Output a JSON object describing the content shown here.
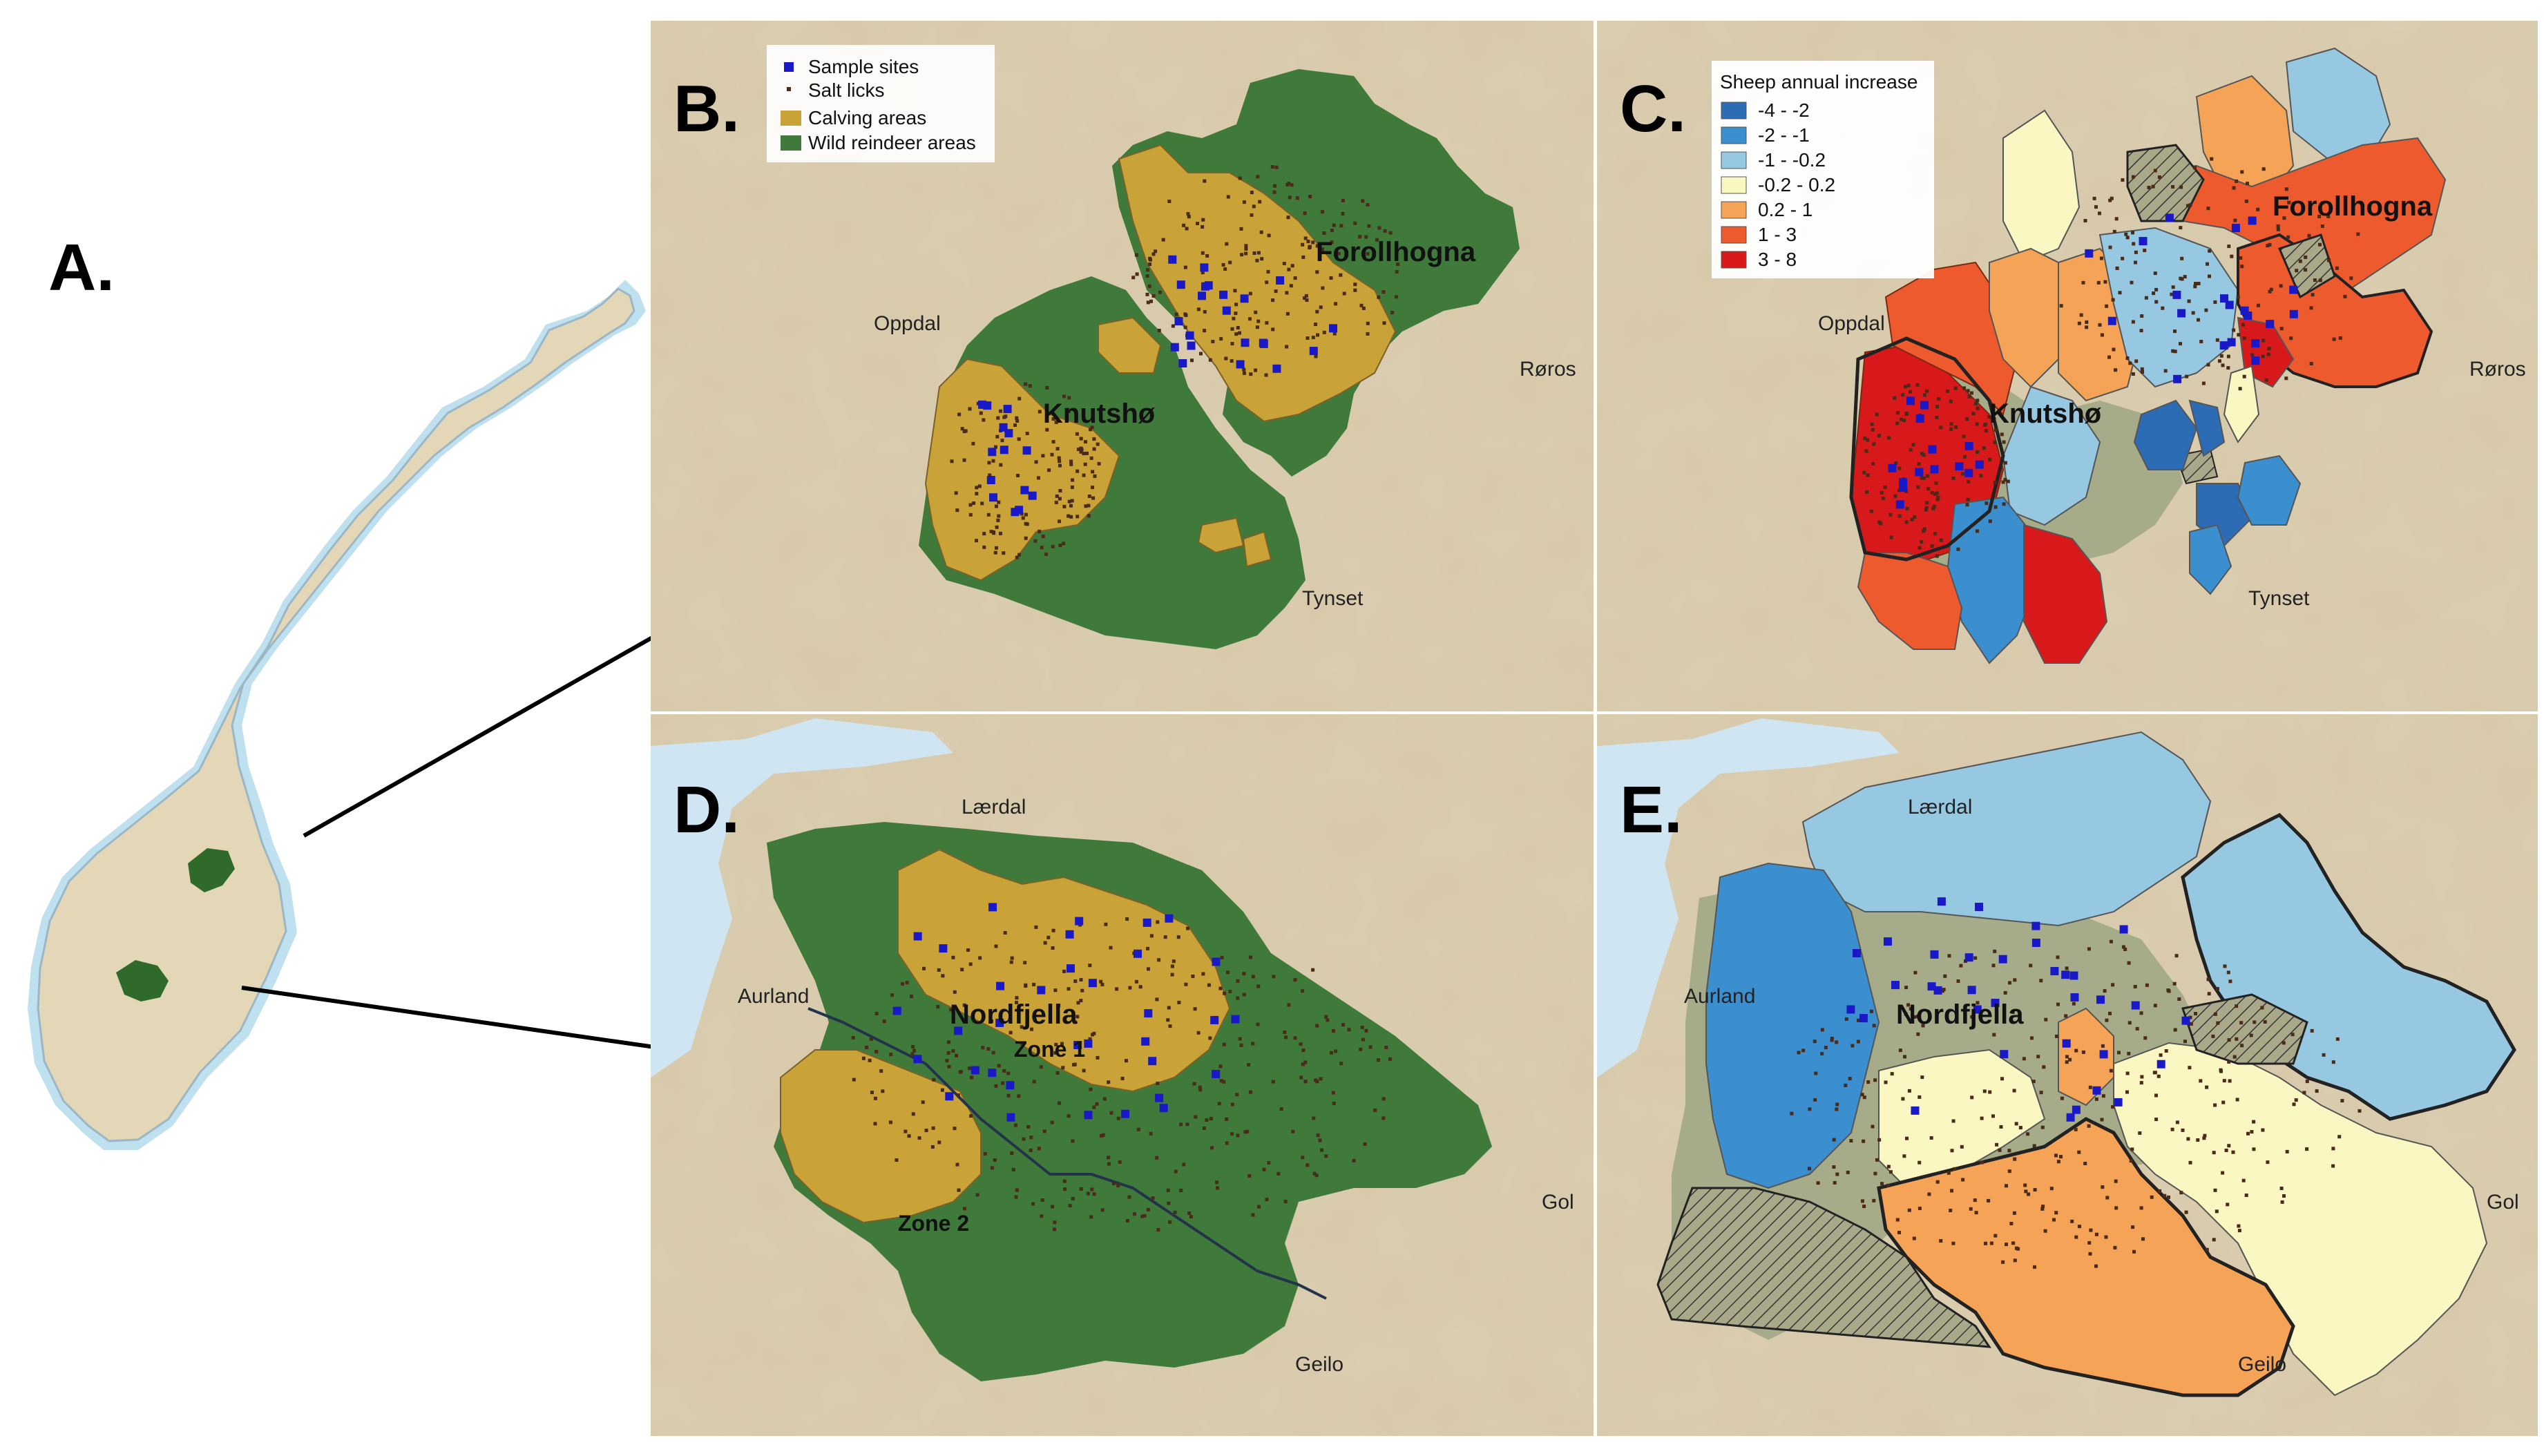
{
  "panels": {
    "a": {
      "letter": "A."
    },
    "b": {
      "letter": "B."
    },
    "c": {
      "letter": "C."
    },
    "d": {
      "letter": "D."
    },
    "e": {
      "letter": "E."
    }
  },
  "legend_b": {
    "sample_sites": "Sample sites",
    "salt_licks": "Salt licks",
    "calving_areas": "Calving areas",
    "wild_reindeer_areas": "Wild reindeer areas"
  },
  "legend_c": {
    "title": "Sheep annual increase",
    "classes": [
      {
        "label": "-4   -   -2",
        "color": "#2c6cb5"
      },
      {
        "label": "-2   -   -1",
        "color": "#3b8fcf"
      },
      {
        "label": "-1   -   -0.2",
        "color": "#96c8e2"
      },
      {
        "label": "-0.2  -   0.2",
        "color": "#fbf7c2"
      },
      {
        "label": "0.2   -   1",
        "color": "#f5a356"
      },
      {
        "label": "1     -   3",
        "color": "#ed5a2e"
      },
      {
        "label": "3     -   8",
        "color": "#d7191c"
      }
    ]
  },
  "areas": {
    "knutsho": "Knutshø",
    "forollhogna": "Forollhogna",
    "nordfjella": "Nordfjella",
    "zone1": "Zone 1",
    "zone2": "Zone 2"
  },
  "towns": {
    "oppdal": "Oppdal",
    "roros": "Røros",
    "tynset": "Tynset",
    "laerdal": "Lærdal",
    "aurland": "Aurland",
    "gol": "Gol",
    "geilo": "Geilo"
  },
  "colors": {
    "reindeer": "#3f7a3b",
    "calving": "#c9a238",
    "sample": "#1919c8",
    "salt": "#4a2a18",
    "terrain": "#d9c9a8",
    "norway": "#e3d7b8",
    "coast": "#bfe0ef"
  }
}
